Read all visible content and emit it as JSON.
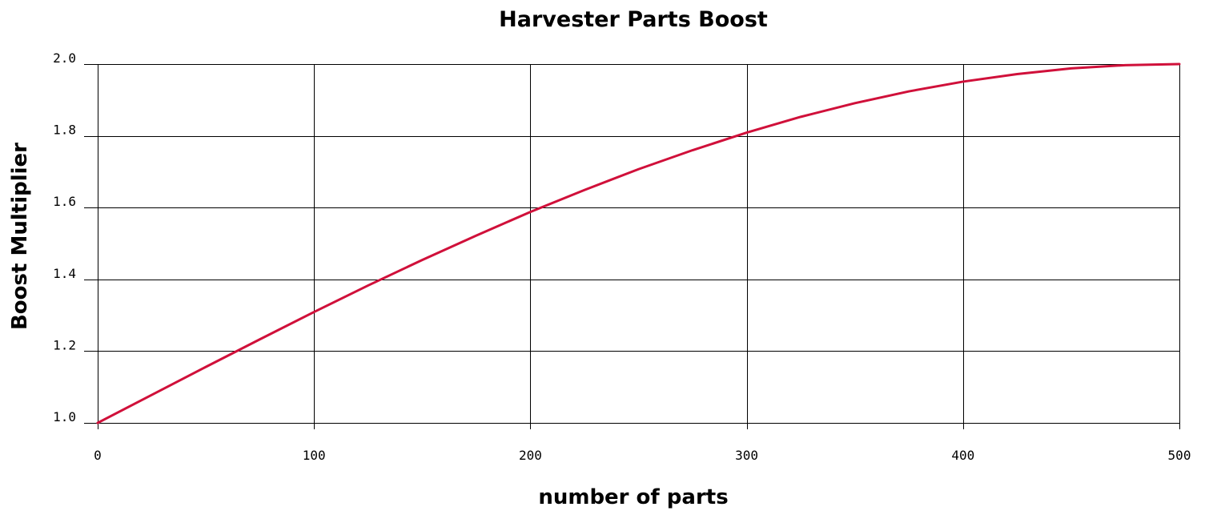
{
  "chart_data": {
    "type": "line",
    "title": "Harvester Parts Boost",
    "xlabel": "number of parts",
    "ylabel": "Boost Multiplier",
    "xlim": [
      0,
      500
    ],
    "ylim": [
      1.0,
      2.0
    ],
    "x_ticks": [
      0,
      100,
      200,
      300,
      400,
      500
    ],
    "x_tick_labels": [
      "0",
      "100",
      "200",
      "300",
      "400",
      "500"
    ],
    "y_ticks": [
      1.0,
      1.2,
      1.4,
      1.6,
      1.8,
      2.0
    ],
    "y_tick_labels": [
      "1.0",
      "1.2",
      "1.4",
      "1.6",
      "1.8",
      "2.0"
    ],
    "grid": true,
    "series": [
      {
        "color": "#d0103a",
        "x": [
          0,
          25,
          50,
          75,
          100,
          125,
          150,
          175,
          200,
          225,
          250,
          275,
          300,
          325,
          350,
          375,
          400,
          425,
          450,
          475,
          500
        ],
        "y": [
          1.0,
          1.078,
          1.156,
          1.233,
          1.309,
          1.383,
          1.454,
          1.522,
          1.588,
          1.649,
          1.707,
          1.76,
          1.809,
          1.853,
          1.891,
          1.924,
          1.951,
          1.972,
          1.988,
          1.997,
          2.0
        ]
      }
    ]
  }
}
